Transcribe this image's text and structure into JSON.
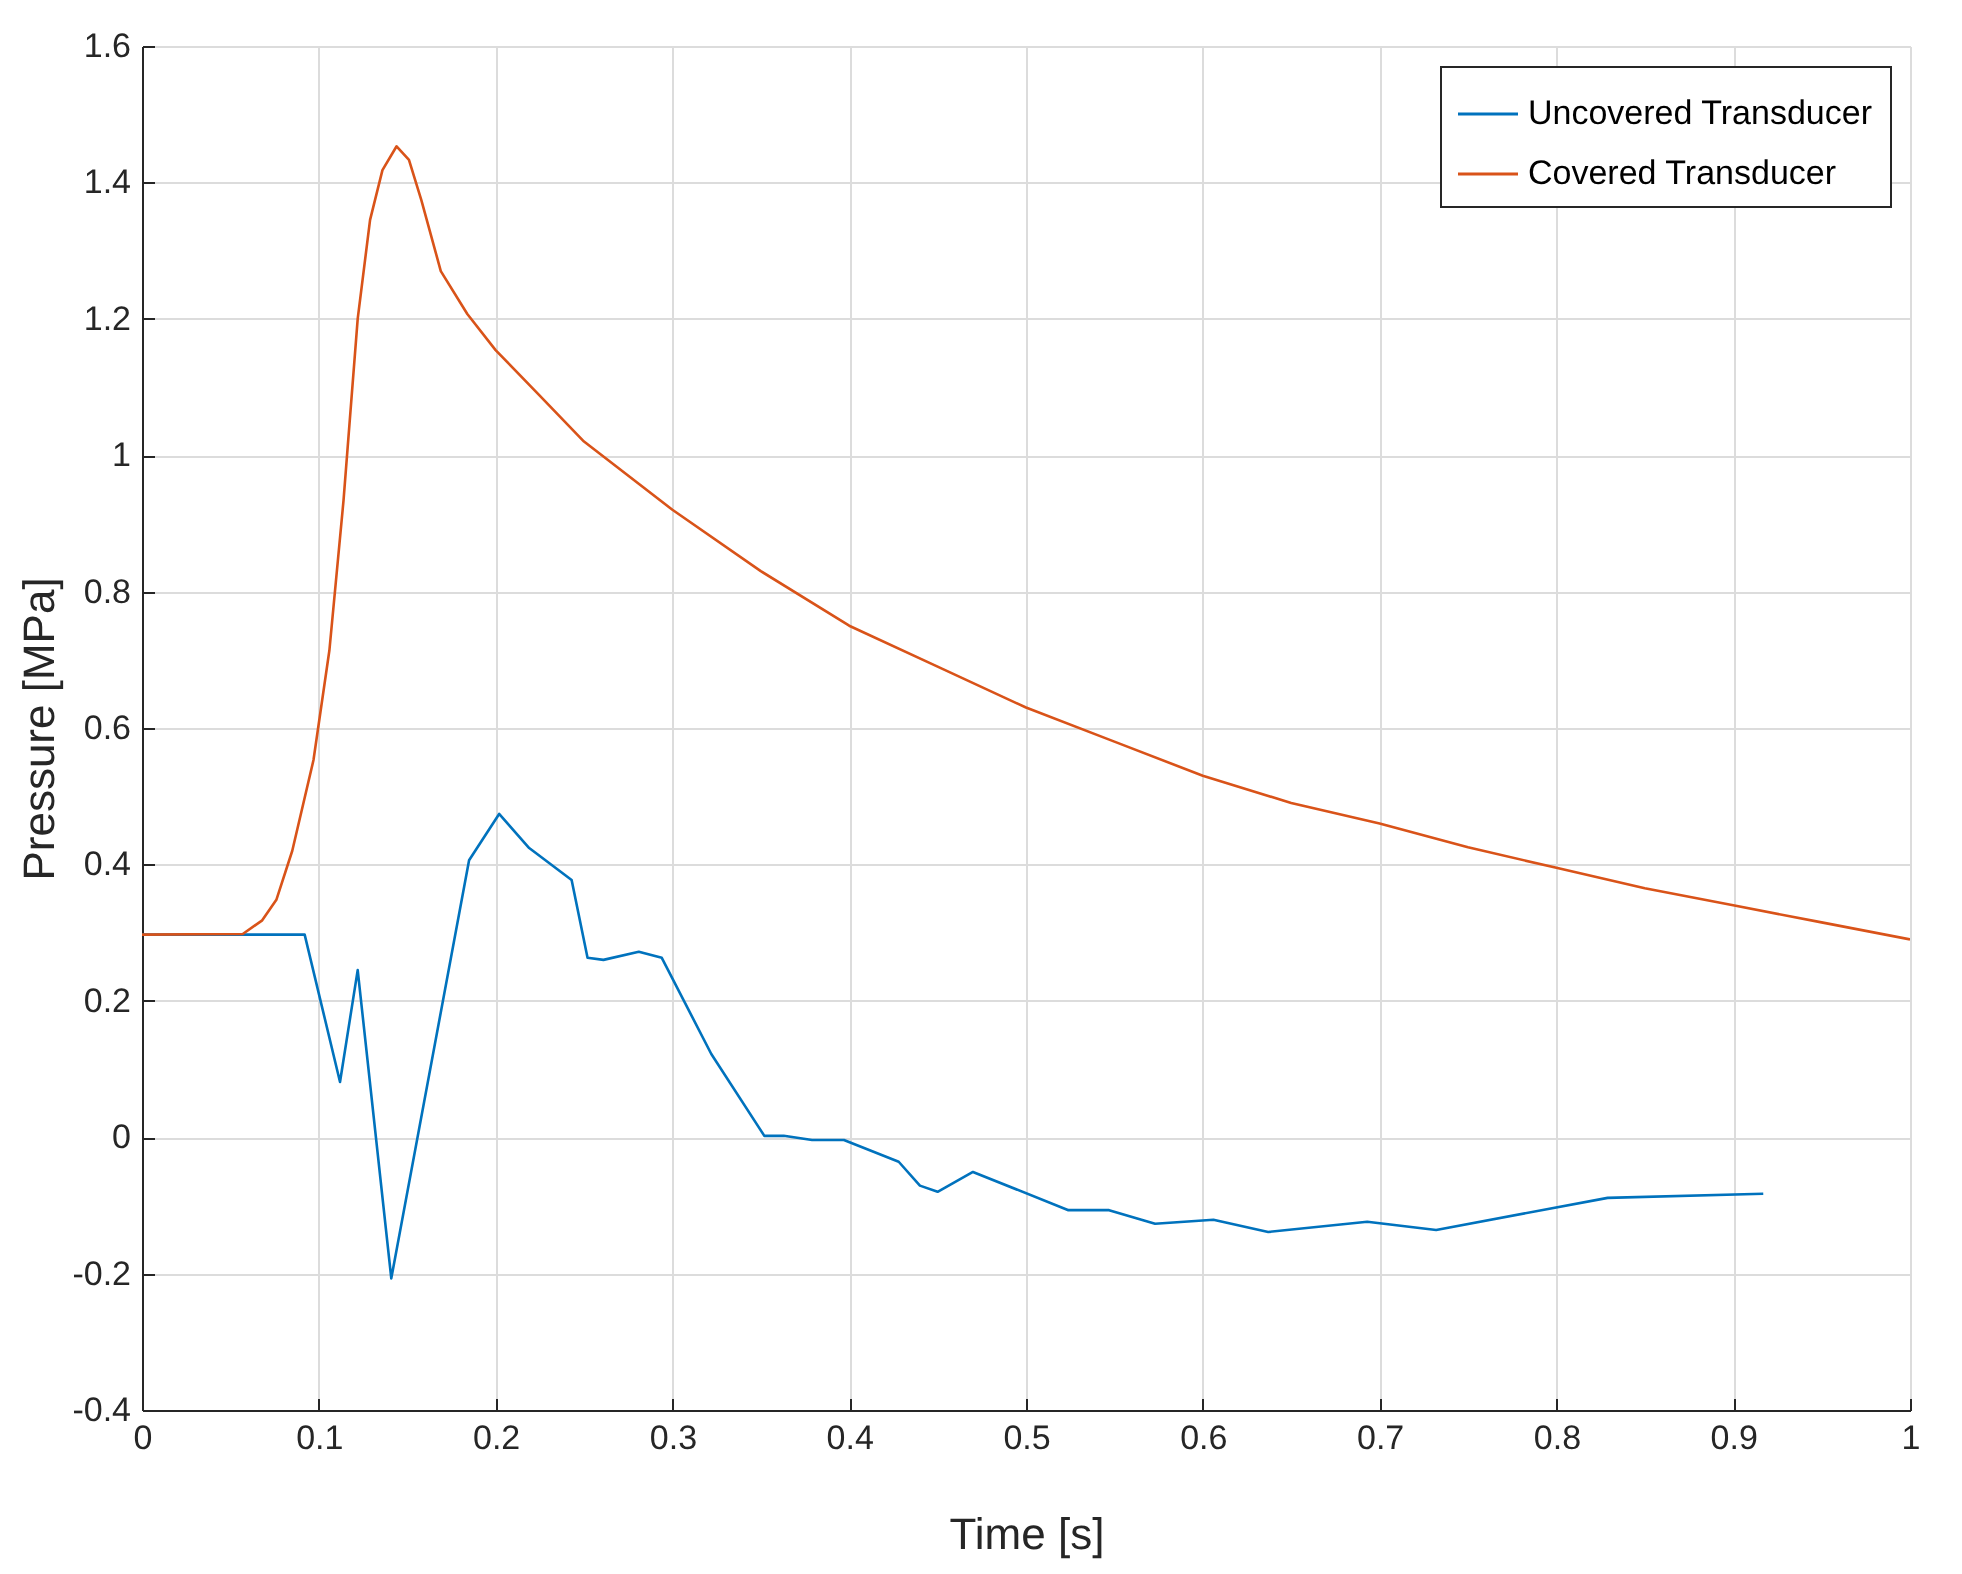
{
  "chart_data": {
    "type": "line",
    "xlabel": "Time [s]",
    "ylabel": "Pressure [MPa]",
    "xlim": [
      0,
      1
    ],
    "xticks": [
      0,
      0.1,
      0.2,
      0.3,
      0.4,
      0.5,
      0.6,
      0.7,
      0.8,
      0.9,
      1
    ],
    "ylim": [
      -0.4,
      1.6
    ],
    "yticks": [
      -0.4,
      -0.2,
      0,
      0.2,
      0.4,
      0.6,
      0.8,
      1,
      1.2,
      1.4,
      1.6
    ],
    "grid": true,
    "legend": "top right",
    "series": [
      {
        "name": "Uncovered Transducer",
        "color": "#0072bd",
        "x": [
          0,
          0.092,
          0.112,
          0.122,
          0.141,
          0.185,
          0.202,
          0.219,
          0.243,
          0.252,
          0.261,
          0.281,
          0.294,
          0.322,
          0.352,
          0.363,
          0.379,
          0.397,
          0.428,
          0.44,
          0.45,
          0.47,
          0.524,
          0.547,
          0.573,
          0.606,
          0.637,
          0.693,
          0.732,
          0.829,
          0.917
        ],
        "values": [
          0.297,
          0.297,
          0.081,
          0.245,
          -0.207,
          0.406,
          0.474,
          0.424,
          0.377,
          0.263,
          0.26,
          0.272,
          0.263,
          0.122,
          0.002,
          0.002,
          -0.004,
          -0.004,
          -0.036,
          -0.071,
          -0.08,
          -0.051,
          -0.107,
          -0.107,
          -0.127,
          -0.121,
          -0.139,
          -0.124,
          -0.136,
          -0.089,
          -0.083
        ]
      },
      {
        "name": "Covered Transducer",
        "color": "#d95319",
        "x": [
          0,
          0.057,
          0.068,
          0.076,
          0.085,
          0.097,
          0.106,
          0.114,
          0.122,
          0.129,
          0.136,
          0.144,
          0.151,
          0.158,
          0.169,
          0.184,
          0.2,
          0.224,
          0.25,
          0.3,
          0.35,
          0.4,
          0.45,
          0.5,
          0.55,
          0.6,
          0.65,
          0.7,
          0.75,
          0.8,
          0.85,
          0.9,
          0.95,
          1
        ],
        "values": [
          0.297,
          0.298,
          0.318,
          0.348,
          0.42,
          0.553,
          0.714,
          0.934,
          1.2,
          1.345,
          1.418,
          1.453,
          1.433,
          1.374,
          1.27,
          1.207,
          1.154,
          1.09,
          1.02,
          0.92,
          0.83,
          0.75,
          0.69,
          0.63,
          0.58,
          0.53,
          0.49,
          0.46,
          0.425,
          0.395,
          0.365,
          0.34,
          0.315,
          0.29
        ]
      }
    ]
  }
}
